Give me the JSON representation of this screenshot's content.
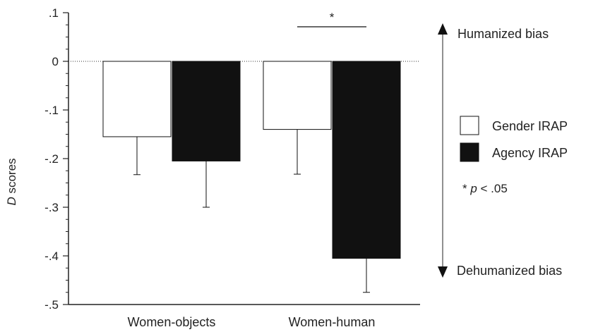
{
  "chart_data": {
    "type": "bar",
    "categories": [
      "Women-objects",
      "Women-human"
    ],
    "series": [
      {
        "name": "Gender IRAP",
        "values": [
          -0.155,
          -0.14
        ],
        "errors": [
          0.078,
          0.092
        ],
        "color": "#ffffff"
      },
      {
        "name": "Agency IRAP",
        "values": [
          -0.205,
          -0.405
        ],
        "errors": [
          0.095,
          0.07
        ],
        "color": "#111111"
      }
    ],
    "ylabel_italic": "D",
    "ylabel": " scores",
    "ylim": [
      -0.5,
      0.1
    ],
    "yticks": [
      {
        "value": 0.1,
        "label": ".1"
      },
      {
        "value": 0.0,
        "label": "0"
      },
      {
        "value": -0.1,
        "label": "-.1"
      },
      {
        "value": -0.2,
        "label": "-.2"
      },
      {
        "value": -0.3,
        "label": "-.3"
      },
      {
        "value": -0.4,
        "label": "-.4"
      },
      {
        "value": -0.5,
        "label": "-.5"
      }
    ],
    "zero_reference_line": "dotted",
    "significance": {
      "category": "Women-human",
      "marker": "*"
    },
    "bias_axis": {
      "top_label": "Humanized bias",
      "bottom_label": "Dehumanized bias"
    },
    "note": {
      "prefix": "* ",
      "italic": "p",
      "suffix": " < .05"
    },
    "legend_position": "right"
  }
}
